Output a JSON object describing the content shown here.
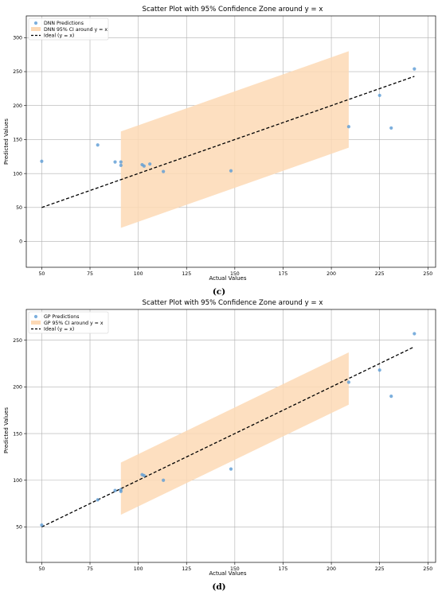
{
  "panels": [
    {
      "caption": "(c)",
      "chart_data": {
        "type": "scatter",
        "title": "Scatter Plot with 95% Confidence Zone around y = x",
        "xlabel": "Actual Values",
        "ylabel": "Predicted Values",
        "xlim": [
          42,
          254
        ],
        "ylim": [
          -38,
          332
        ],
        "xticks": [
          "50",
          "75",
          "100",
          "125",
          "150",
          "175",
          "200",
          "225",
          "250"
        ],
        "yticks": [
          "0",
          "50",
          "100",
          "150",
          "200",
          "250",
          "300"
        ],
        "grid": true,
        "legend_position": "top-left",
        "legend": [
          "DNN Predictions",
          "DNN 95% CI around y = x",
          "Ideal (y = x)"
        ],
        "points": [
          {
            "x": 50,
            "y": 118
          },
          {
            "x": 79,
            "y": 142
          },
          {
            "x": 88,
            "y": 117
          },
          {
            "x": 91,
            "y": 117
          },
          {
            "x": 91,
            "y": 112
          },
          {
            "x": 102,
            "y": 113
          },
          {
            "x": 103,
            "y": 111
          },
          {
            "x": 106,
            "y": 114
          },
          {
            "x": 113,
            "y": 103
          },
          {
            "x": 148,
            "y": 104
          },
          {
            "x": 209,
            "y": 169
          },
          {
            "x": 225,
            "y": 215
          },
          {
            "x": 231,
            "y": 167
          },
          {
            "x": 243,
            "y": 254
          }
        ],
        "ci_band": {
          "x_start": 91,
          "x_end": 209,
          "half_width": 71
        },
        "ideal_line": {
          "x": [
            50,
            243
          ],
          "y": [
            50,
            243
          ]
        },
        "colors": {
          "points": "#5b9bd5",
          "band": "#fdd9b5",
          "ideal": "#000000"
        }
      }
    },
    {
      "caption": "(d)",
      "chart_data": {
        "type": "scatter",
        "title": "Scatter Plot with 95% Confidence Zone around y = x",
        "xlabel": "Actual Values",
        "ylabel": "Predicted Values",
        "xlim": [
          42,
          254
        ],
        "ylim": [
          12,
          283
        ],
        "xticks": [
          "50",
          "75",
          "100",
          "125",
          "150",
          "175",
          "200",
          "225",
          "250"
        ],
        "yticks": [
          "50",
          "100",
          "150",
          "200",
          "250"
        ],
        "grid": true,
        "legend_position": "top-left",
        "legend": [
          "GP Predictions",
          "GP 95% CI around y = x",
          "Ideal (y = x)"
        ],
        "points": [
          {
            "x": 50,
            "y": 52
          },
          {
            "x": 79,
            "y": 79
          },
          {
            "x": 88,
            "y": 89
          },
          {
            "x": 91,
            "y": 88
          },
          {
            "x": 91,
            "y": 90
          },
          {
            "x": 102,
            "y": 106
          },
          {
            "x": 103,
            "y": 105
          },
          {
            "x": 113,
            "y": 100
          },
          {
            "x": 148,
            "y": 112
          },
          {
            "x": 209,
            "y": 205
          },
          {
            "x": 225,
            "y": 218
          },
          {
            "x": 231,
            "y": 190
          },
          {
            "x": 243,
            "y": 257
          }
        ],
        "ci_band": {
          "x_start": 91,
          "x_end": 209,
          "half_width": 28
        },
        "ideal_line": {
          "x": [
            50,
            243
          ],
          "y": [
            50,
            243
          ]
        },
        "colors": {
          "points": "#5b9bd5",
          "band": "#fdd9b5",
          "ideal": "#000000"
        }
      }
    }
  ]
}
